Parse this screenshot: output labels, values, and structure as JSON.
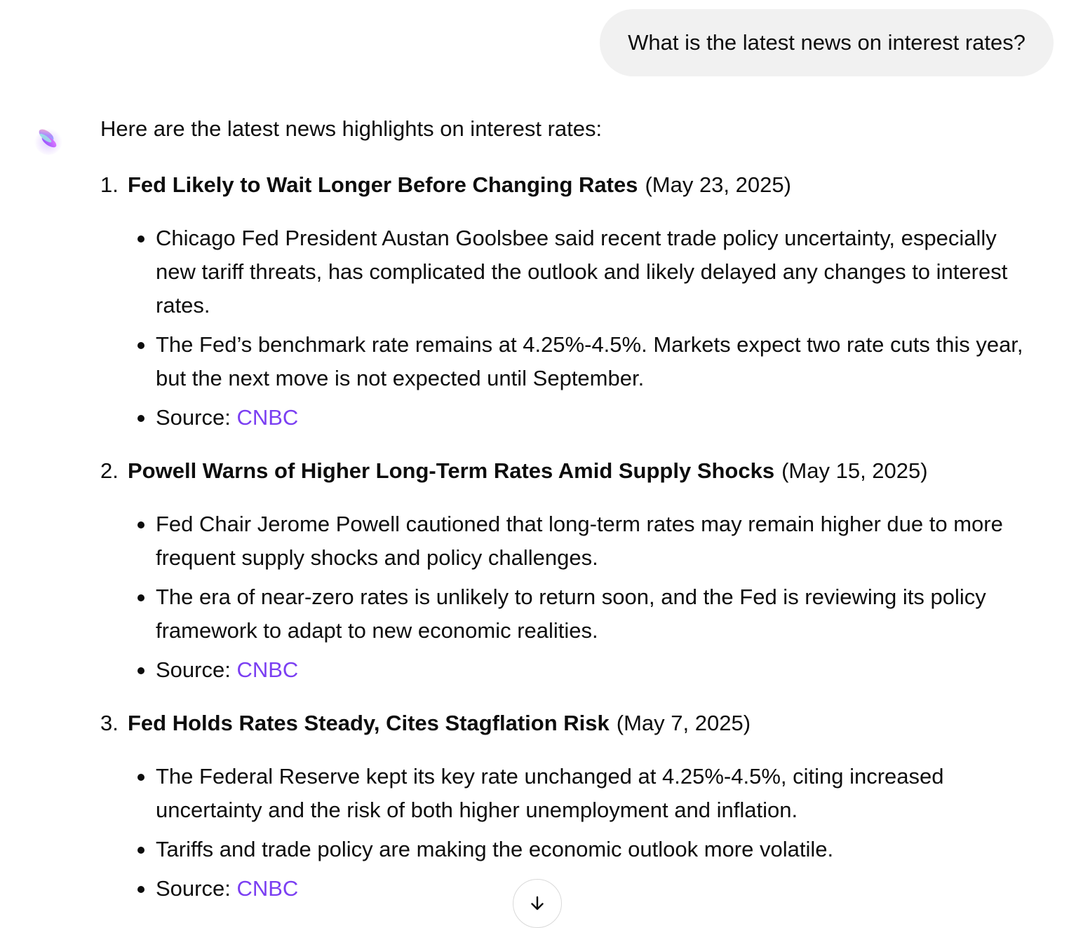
{
  "user_message": "What is the latest news on interest rates?",
  "assistant": {
    "avatar_icon": "gradient-orb-icon",
    "intro": "Here are the latest news highlights on interest rates:",
    "items": [
      {
        "number": "1.",
        "title": "Fed Likely to Wait Longer Before Changing Rates",
        "date": "(May 23, 2025)",
        "bullets": [
          "Chicago Fed President Austan Goolsbee said recent trade policy uncertainty, especially new tariff threats, has complicated the outlook and likely delayed any changes to interest rates.",
          "The Fed’s benchmark rate remains at 4.25%-4.5%. Markets expect two rate cuts this year, but the next move is not expected until September."
        ],
        "source_label": "Source: ",
        "source_link": "CNBC"
      },
      {
        "number": "2.",
        "title": "Powell Warns of Higher Long-Term Rates Amid Supply Shocks",
        "date": "(May 15, 2025)",
        "bullets": [
          "Fed Chair Jerome Powell cautioned that long-term rates may remain higher due to more frequent supply shocks and policy challenges.",
          "The era of near-zero rates is unlikely to return soon, and the Fed is reviewing its policy framework to adapt to new economic realities."
        ],
        "source_label": "Source: ",
        "source_link": "CNBC"
      },
      {
        "number": "3.",
        "title": "Fed Holds Rates Steady, Cites Stagflation Risk",
        "date": "(May 7, 2025)",
        "bullets": [
          "The Federal Reserve kept its key rate unchanged at 4.25%-4.5%, citing increased uncertainty and the risk of both higher unemployment and inflation.",
          "Tariffs and trade policy are making the economic outlook more volatile."
        ],
        "source_label": "Source: ",
        "source_link": "CNBC"
      }
    ]
  },
  "scroll_button_icon": "arrow-down-icon",
  "colors": {
    "link": "#7b3ff2",
    "user_bubble_bg": "#f1f1f1",
    "text": "#0d0d0d"
  }
}
